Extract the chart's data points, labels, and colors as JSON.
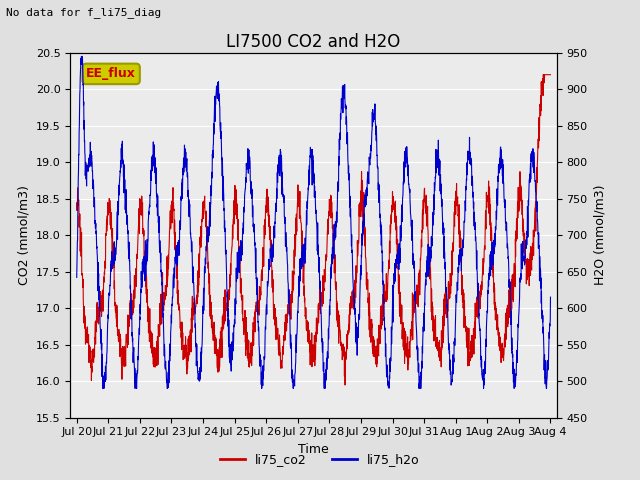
{
  "title": "LI7500 CO2 and H2O",
  "top_left_text": "No data for f_li75_diag",
  "annotation_text": "EE_flux",
  "xlabel": "Time",
  "ylabel_left": "CO2 (mmol/m3)",
  "ylabel_right": "H2O (mmol/m3)",
  "co2_ylim": [
    15.5,
    20.5
  ],
  "h2o_ylim": [
    450,
    950
  ],
  "co2_yticks": [
    15.5,
    16.0,
    16.5,
    17.0,
    17.5,
    18.0,
    18.5,
    19.0,
    19.5,
    20.0,
    20.5
  ],
  "h2o_yticks": [
    450,
    500,
    550,
    600,
    650,
    700,
    750,
    800,
    850,
    900,
    950
  ],
  "xtick_labels": [
    "Jul 20",
    "Jul 21",
    "Jul 22",
    "Jul 23",
    "Jul 24",
    "Jul 25",
    "Jul 26",
    "Jul 27",
    "Jul 28",
    "Jul 29",
    "Jul 30",
    "Jul 31",
    "Aug 1",
    "Aug 2",
    "Aug 3",
    "Aug 4"
  ],
  "line_color_co2": "#cc0000",
  "line_color_h2o": "#0000cc",
  "legend_label_co2": "li75_co2",
  "legend_label_h2o": "li75_h2o",
  "bg_color": "#e0e0e0",
  "plot_bg_color": "#ebebeb",
  "annotation_bg": "#cccc00",
  "annotation_fg": "#cc0000",
  "grid_color": "#ffffff",
  "title_fontsize": 12,
  "label_fontsize": 9,
  "tick_fontsize": 8
}
